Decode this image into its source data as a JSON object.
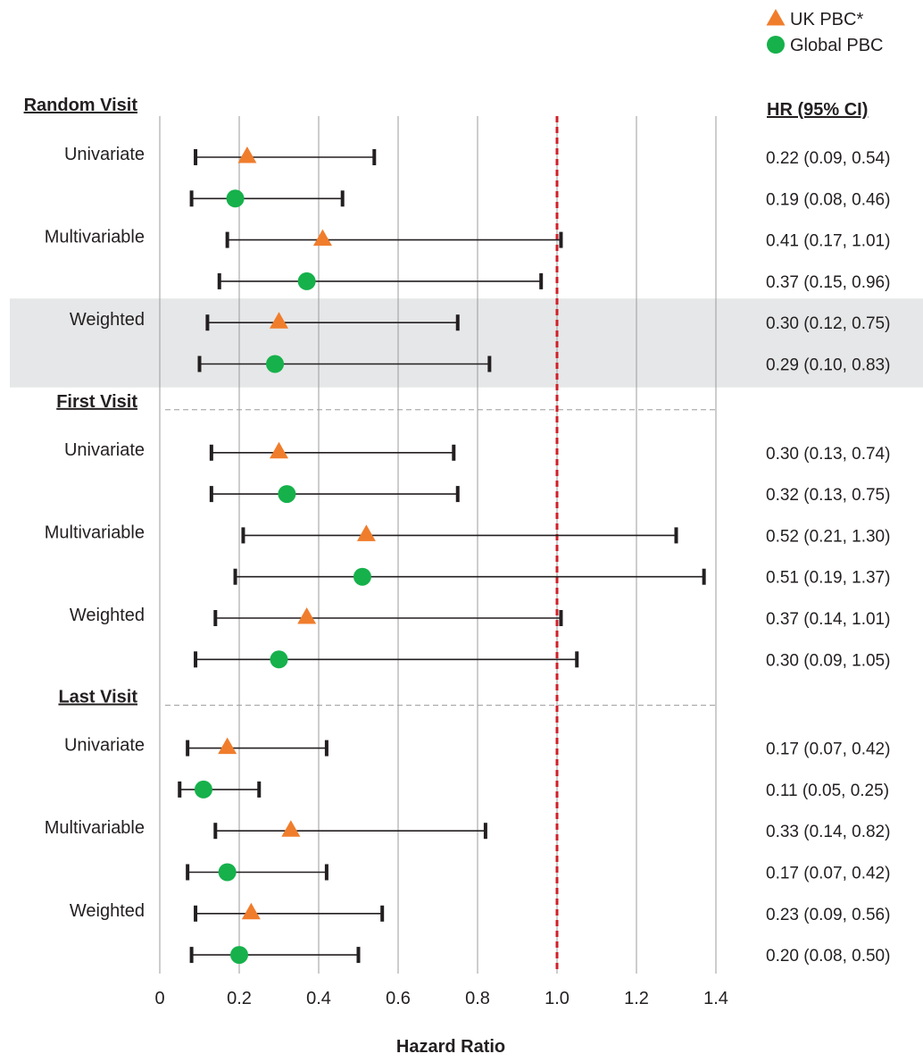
{
  "chart_data": {
    "type": "forest",
    "xlabel": "Hazard Ratio",
    "xlim": [
      0,
      1.4
    ],
    "xticks": [
      0,
      0.2,
      0.4,
      0.6,
      0.8,
      1.0,
      1.2,
      1.4
    ],
    "xtick_labels": [
      "0",
      "0.2",
      "0.4",
      "0.6",
      "0.8",
      "1.0",
      "1.2",
      "1.4"
    ],
    "reference_line": 1.0,
    "grid": "vertical",
    "legend": {
      "placement": "top-right",
      "entries": [
        {
          "name": "UK PBC*",
          "marker": "triangle",
          "color": "#F07D2C"
        },
        {
          "name": "Global PBC",
          "marker": "circle",
          "color": "#16B14B"
        }
      ]
    },
    "hr_column_header": "HR (95% CI)",
    "highlight": {
      "section": 0,
      "method": "Weighted",
      "color": "#E6E7E8"
    },
    "colors": {
      "uk": "#F07D2C",
      "global": "#16B14B",
      "reference": "#D0202A",
      "grid": "#9B9B9B",
      "ci": "#231F20"
    },
    "sections": [
      {
        "title": "Random Visit",
        "groups": [
          {
            "label": "Univariate",
            "rows": [
              {
                "series": "UK PBC*",
                "hr": 0.22,
                "lo": 0.09,
                "hi": 0.54,
                "text": "0.22 (0.09, 0.54)"
              },
              {
                "series": "Global PBC",
                "hr": 0.19,
                "lo": 0.08,
                "hi": 0.46,
                "text": "0.19 (0.08, 0.46)"
              }
            ]
          },
          {
            "label": "Multivariable",
            "rows": [
              {
                "series": "UK PBC*",
                "hr": 0.41,
                "lo": 0.17,
                "hi": 1.01,
                "text": "0.41 (0.17, 1.01)"
              },
              {
                "series": "Global PBC",
                "hr": 0.37,
                "lo": 0.15,
                "hi": 0.96,
                "text": "0.37 (0.15, 0.96)"
              }
            ]
          },
          {
            "label": "Weighted",
            "rows": [
              {
                "series": "UK PBC*",
                "hr": 0.3,
                "lo": 0.12,
                "hi": 0.75,
                "text": "0.30 (0.12, 0.75)"
              },
              {
                "series": "Global PBC",
                "hr": 0.29,
                "lo": 0.1,
                "hi": 0.83,
                "text": "0.29 (0.10, 0.83)"
              }
            ]
          }
        ]
      },
      {
        "title": "First Visit",
        "groups": [
          {
            "label": "Univariate",
            "rows": [
              {
                "series": "UK PBC*",
                "hr": 0.3,
                "lo": 0.13,
                "hi": 0.74,
                "text": "0.30 (0.13, 0.74)"
              },
              {
                "series": "Global PBC",
                "hr": 0.32,
                "lo": 0.13,
                "hi": 0.75,
                "text": "0.32 (0.13, 0.75)"
              }
            ]
          },
          {
            "label": "Multivariable",
            "rows": [
              {
                "series": "UK PBC*",
                "hr": 0.52,
                "lo": 0.21,
                "hi": 1.3,
                "text": "0.52 (0.21, 1.30)"
              },
              {
                "series": "Global PBC",
                "hr": 0.51,
                "lo": 0.19,
                "hi": 1.37,
                "text": "0.51 (0.19, 1.37)"
              }
            ]
          },
          {
            "label": "Weighted",
            "rows": [
              {
                "series": "UK PBC*",
                "hr": 0.37,
                "lo": 0.14,
                "hi": 1.01,
                "text": "0.37 (0.14, 1.01)"
              },
              {
                "series": "Global PBC",
                "hr": 0.3,
                "lo": 0.09,
                "hi": 1.05,
                "text": "0.30 (0.09, 1.05)"
              }
            ]
          }
        ]
      },
      {
        "title": "Last Visit",
        "groups": [
          {
            "label": "Univariate",
            "rows": [
              {
                "series": "UK PBC*",
                "hr": 0.17,
                "lo": 0.07,
                "hi": 0.42,
                "text": "0.17 (0.07, 0.42)"
              },
              {
                "series": "Global PBC",
                "hr": 0.11,
                "lo": 0.05,
                "hi": 0.25,
                "text": "0.11 (0.05, 0.25)"
              }
            ]
          },
          {
            "label": "Multivariable",
            "rows": [
              {
                "series": "UK PBC*",
                "hr": 0.33,
                "lo": 0.14,
                "hi": 0.82,
                "text": "0.33 (0.14, 0.82)"
              },
              {
                "series": "Global PBC",
                "hr": 0.17,
                "lo": 0.07,
                "hi": 0.42,
                "text": "0.17 (0.07, 0.42)"
              }
            ]
          },
          {
            "label": "Weighted",
            "rows": [
              {
                "series": "UK PBC*",
                "hr": 0.23,
                "lo": 0.09,
                "hi": 0.56,
                "text": "0.23 (0.09, 0.56)"
              },
              {
                "series": "Global PBC",
                "hr": 0.2,
                "lo": 0.08,
                "hi": 0.5,
                "text": "0.20 (0.08, 0.50)"
              }
            ]
          }
        ]
      }
    ]
  }
}
